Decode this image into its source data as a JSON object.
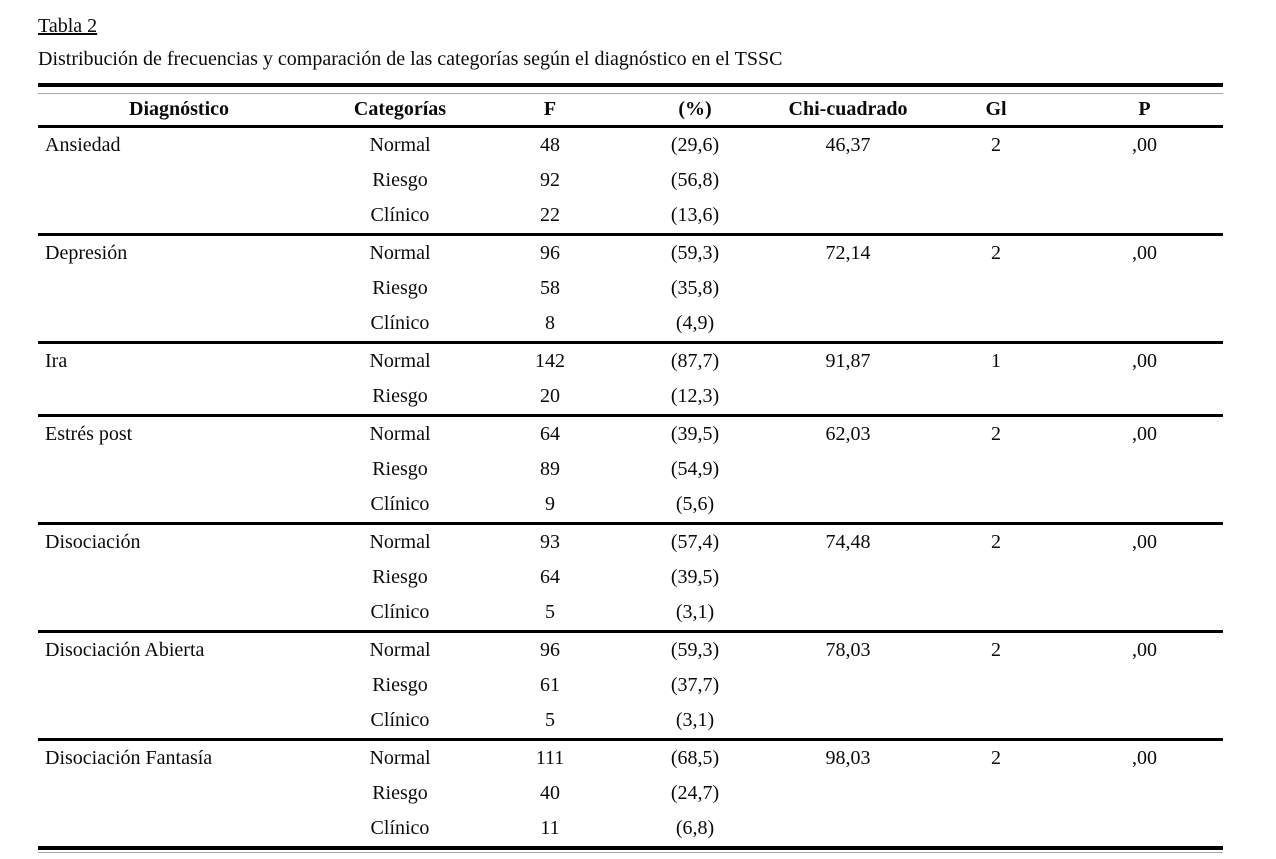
{
  "page": {
    "background": "#ffffff",
    "text_color": "#0a0a0a",
    "rule_color": "#000000"
  },
  "title": "Tabla 2",
  "subtitle": "Distribución de frecuencias y comparación de las categorías según el diagnóstico en el TSSC",
  "table": {
    "columns": [
      "Diagnóstico",
      "Categorías",
      "F",
      "(%)",
      "Chi-cuadrado",
      "Gl",
      "P"
    ],
    "rows": [
      {
        "diagnostico": "Ansiedad",
        "categoria": "Normal",
        "f": "48",
        "pct": "(29,6)",
        "chi": "46,37",
        "gl": "2",
        "p": ",00"
      },
      {
        "diagnostico": "",
        "categoria": "Riesgo",
        "f": "92",
        "pct": "(56,8)",
        "chi": "",
        "gl": "",
        "p": ""
      },
      {
        "diagnostico": "",
        "categoria": "Clínico",
        "f": "22",
        "pct": "(13,6)",
        "chi": "",
        "gl": "",
        "p": ""
      },
      {
        "diagnostico": "Depresión",
        "categoria": "Normal",
        "f": "96",
        "pct": "(59,3)",
        "chi": "72,14",
        "gl": "2",
        "p": ",00"
      },
      {
        "diagnostico": "",
        "categoria": "Riesgo",
        "f": "58",
        "pct": "(35,8)",
        "chi": "",
        "gl": "",
        "p": ""
      },
      {
        "diagnostico": "",
        "categoria": "Clínico",
        "f": "8",
        "pct": "(4,9)",
        "chi": "",
        "gl": "",
        "p": ""
      },
      {
        "diagnostico": "Ira",
        "categoria": "Normal",
        "f": "142",
        "pct": "(87,7)",
        "chi": "91,87",
        "gl": "1",
        "p": ",00"
      },
      {
        "diagnostico": "",
        "categoria": "Riesgo",
        "f": "20",
        "pct": "(12,3)",
        "chi": "",
        "gl": "",
        "p": ""
      },
      {
        "diagnostico": "Estrés post",
        "categoria": "Normal",
        "f": "64",
        "pct": "(39,5)",
        "chi": "62,03",
        "gl": "2",
        "p": ",00"
      },
      {
        "diagnostico": "",
        "categoria": "Riesgo",
        "f": "89",
        "pct": "(54,9)",
        "chi": "",
        "gl": "",
        "p": ""
      },
      {
        "diagnostico": "",
        "categoria": "Clínico",
        "f": "9",
        "pct": "(5,6)",
        "chi": "",
        "gl": "",
        "p": ""
      },
      {
        "diagnostico": "Disociación",
        "categoria": "Normal",
        "f": "93",
        "pct": "(57,4)",
        "chi": "74,48",
        "gl": "2",
        "p": ",00"
      },
      {
        "diagnostico": "",
        "categoria": "Riesgo",
        "f": "64",
        "pct": "(39,5)",
        "chi": "",
        "gl": "",
        "p": ""
      },
      {
        "diagnostico": "",
        "categoria": "Clínico",
        "f": "5",
        "pct": "(3,1)",
        "chi": "",
        "gl": "",
        "p": ""
      },
      {
        "diagnostico": "Disociación Abierta",
        "categoria": "Normal",
        "f": "96",
        "pct": "(59,3)",
        "chi": "78,03",
        "gl": "2",
        "p": ",00"
      },
      {
        "diagnostico": "",
        "categoria": "Riesgo",
        "f": "61",
        "pct": "(37,7)",
        "chi": "",
        "gl": "",
        "p": ""
      },
      {
        "diagnostico": "",
        "categoria": "Clínico",
        "f": "5",
        "pct": "(3,1)",
        "chi": "",
        "gl": "",
        "p": ""
      },
      {
        "diagnostico": "Disociación Fantasía",
        "categoria": "Normal",
        "f": "111",
        "pct": "(68,5)",
        "chi": "98,03",
        "gl": "2",
        "p": ",00"
      },
      {
        "diagnostico": "",
        "categoria": "Riesgo",
        "f": "40",
        "pct": "(24,7)",
        "chi": "",
        "gl": "",
        "p": ""
      },
      {
        "diagnostico": "",
        "categoria": "Clínico",
        "f": "11",
        "pct": "(6,8)",
        "chi": "",
        "gl": "",
        "p": ""
      }
    ]
  }
}
